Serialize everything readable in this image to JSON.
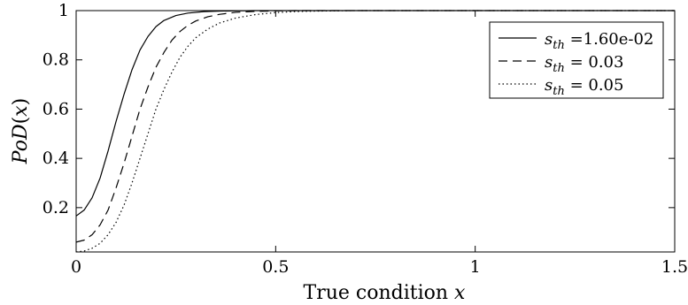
{
  "chart_data": {
    "type": "line",
    "xlabel": "True condition x",
    "xlabel_parts": {
      "text": "True condition ",
      "var": "x"
    },
    "ylabel": "PoD(x)",
    "ylabel_parts": {
      "func": "PoD",
      "open": "(",
      "var": "x",
      "close": ")"
    },
    "xlim": [
      0,
      1.5
    ],
    "ylim": [
      0.02,
      1
    ],
    "xticks": [
      0,
      0.5,
      1,
      1.5
    ],
    "xtick_labels": [
      "0",
      "0.5",
      "1",
      "1.5"
    ],
    "yticks": [
      0.2,
      0.4,
      0.6,
      0.8,
      1
    ],
    "ytick_labels": [
      "0.2",
      "0.4",
      "0.6",
      "0.8",
      "1"
    ],
    "grid": false,
    "legend_position": "top-right",
    "series": [
      {
        "name": "s_th =1.60e-02",
        "legend_var": "s",
        "legend_sub": "th",
        "legend_rest": " =1.60e-02",
        "line_style": "solid",
        "x": [
          0,
          0.02,
          0.04,
          0.06,
          0.08,
          0.1,
          0.12,
          0.14,
          0.16,
          0.18,
          0.2,
          0.22,
          0.25,
          0.28,
          0.32,
          0.36,
          0.4,
          0.45,
          0.5,
          0.6,
          0.8,
          1.0,
          1.25,
          1.5
        ],
        "y": [
          0.166,
          0.19,
          0.24,
          0.32,
          0.43,
          0.55,
          0.66,
          0.76,
          0.84,
          0.895,
          0.935,
          0.96,
          0.98,
          0.99,
          0.996,
          0.998,
          0.999,
          1,
          1,
          1,
          1,
          1,
          1,
          1
        ]
      },
      {
        "name": "s_th = 0.03",
        "legend_var": "s",
        "legend_sub": "th",
        "legend_rest": " = 0.03",
        "line_style": "dashed",
        "x": [
          0,
          0.02,
          0.04,
          0.06,
          0.08,
          0.1,
          0.12,
          0.14,
          0.16,
          0.18,
          0.2,
          0.22,
          0.24,
          0.26,
          0.28,
          0.3,
          0.33,
          0.36,
          0.4,
          0.45,
          0.5,
          0.55,
          0.6,
          0.8,
          1.0,
          1.25,
          1.5
        ],
        "y": [
          0.06,
          0.068,
          0.09,
          0.13,
          0.19,
          0.28,
          0.38,
          0.49,
          0.6,
          0.69,
          0.77,
          0.83,
          0.88,
          0.915,
          0.94,
          0.958,
          0.975,
          0.985,
          0.993,
          0.997,
          0.999,
          1,
          1,
          1,
          1,
          1,
          1
        ]
      },
      {
        "name": "s_th = 0.05",
        "legend_var": "s",
        "legend_sub": "th",
        "legend_rest": " = 0.05",
        "line_style": "dotted",
        "x": [
          0,
          0.02,
          0.04,
          0.06,
          0.08,
          0.1,
          0.12,
          0.14,
          0.16,
          0.18,
          0.2,
          0.22,
          0.24,
          0.26,
          0.28,
          0.3,
          0.33,
          0.36,
          0.4,
          0.45,
          0.5,
          0.55,
          0.6,
          0.7,
          0.8,
          1.0,
          1.25,
          1.5
        ],
        "y": [
          0.02,
          0.024,
          0.035,
          0.055,
          0.09,
          0.14,
          0.21,
          0.3,
          0.4,
          0.5,
          0.6,
          0.68,
          0.75,
          0.81,
          0.855,
          0.89,
          0.925,
          0.95,
          0.97,
          0.984,
          0.992,
          0.996,
          0.998,
          1,
          1,
          1,
          1,
          1
        ]
      }
    ]
  }
}
